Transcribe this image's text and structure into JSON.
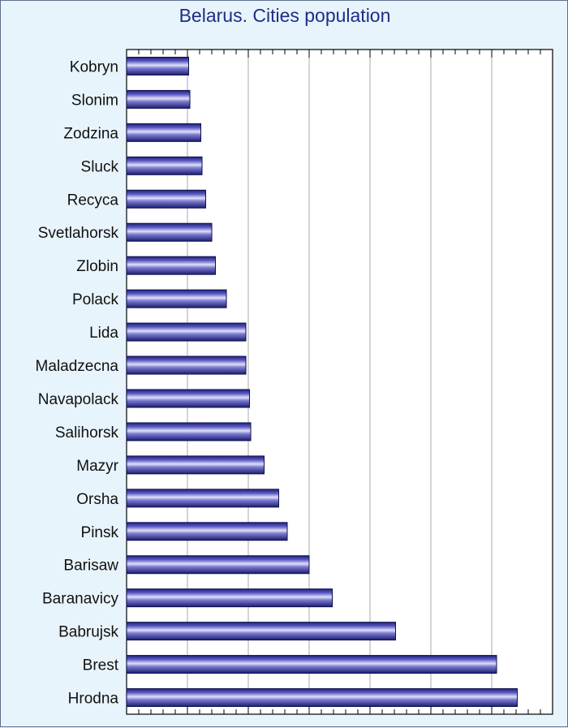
{
  "chart_data": {
    "type": "bar",
    "orientation": "horizontal",
    "title": "Belarus. Cities population",
    "xlabel": "",
    "ylabel": "",
    "categories": [
      "Kobryn",
      "Slonim",
      "Zodzina",
      "Sluck",
      "Recyca",
      "Svetlahorsk",
      "Zlobin",
      "Polack",
      "Lida",
      "Maladzecna",
      "Navapolack",
      "Salihorsk",
      "Mazyr",
      "Orsha",
      "Pinsk",
      "Barisaw",
      "Baranavicy",
      "Babrujsk",
      "Brest",
      "Hrodna"
    ],
    "values": [
      51,
      52,
      61,
      62,
      65,
      70,
      73,
      82,
      98,
      98,
      101,
      102,
      113,
      125,
      132,
      150,
      169,
      221,
      304,
      321
    ],
    "xlim": [
      0,
      350
    ],
    "grid": true,
    "bar_color": "#3a3a9e"
  }
}
